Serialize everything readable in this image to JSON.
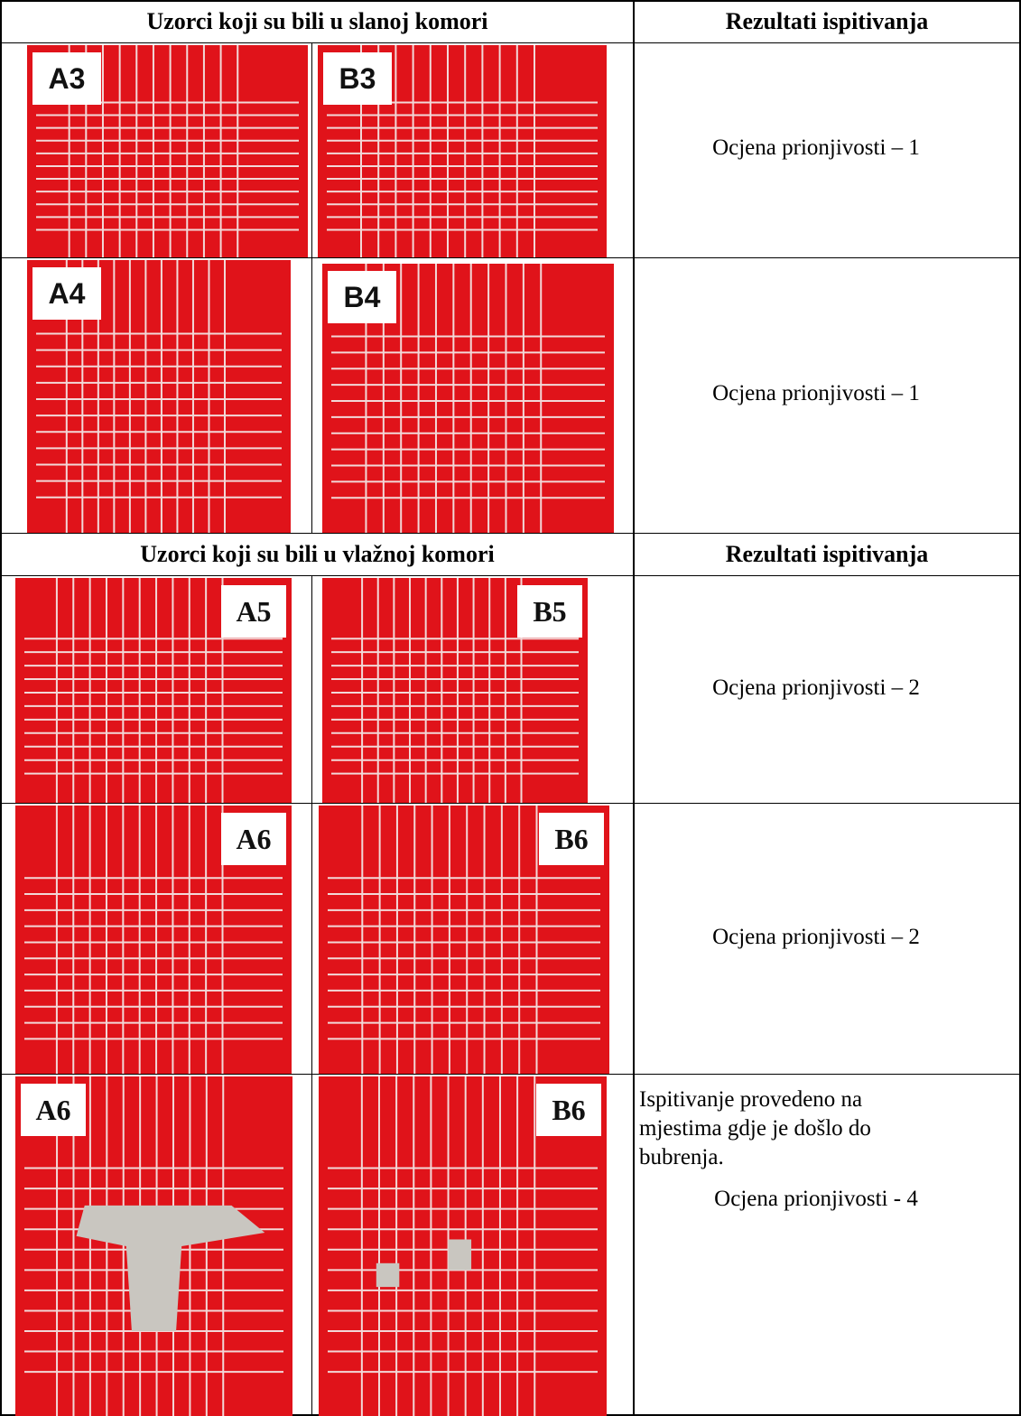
{
  "sections": [
    {
      "header": [
        "Uzorci koji su bili u slanoj komori",
        "Rezultati ispitivanja"
      ],
      "rows": [
        {
          "samples": [
            "A3",
            "B3"
          ],
          "result": "Ocjena prionjivosti – 1"
        },
        {
          "samples": [
            "A4",
            "B4"
          ],
          "result": "Ocjena prionjivosti – 1"
        }
      ]
    },
    {
      "header": [
        "Uzorci koji su bili u vlažnoj komori",
        "Rezultati ispitivanja"
      ],
      "rows": [
        {
          "samples": [
            "A5",
            "B5"
          ],
          "result": "Ocjena prionjivosti – 2"
        },
        {
          "samples": [
            "A6",
            "B6"
          ],
          "result": "Ocjena prionjivosti – 2"
        },
        {
          "samples": [
            "A6",
            "B6"
          ],
          "note": "Ispitivanje provedeno na mjestima gdje je došlo do bubrenja.",
          "result": "Ocjena prionjivosti - 4"
        }
      ]
    }
  ]
}
